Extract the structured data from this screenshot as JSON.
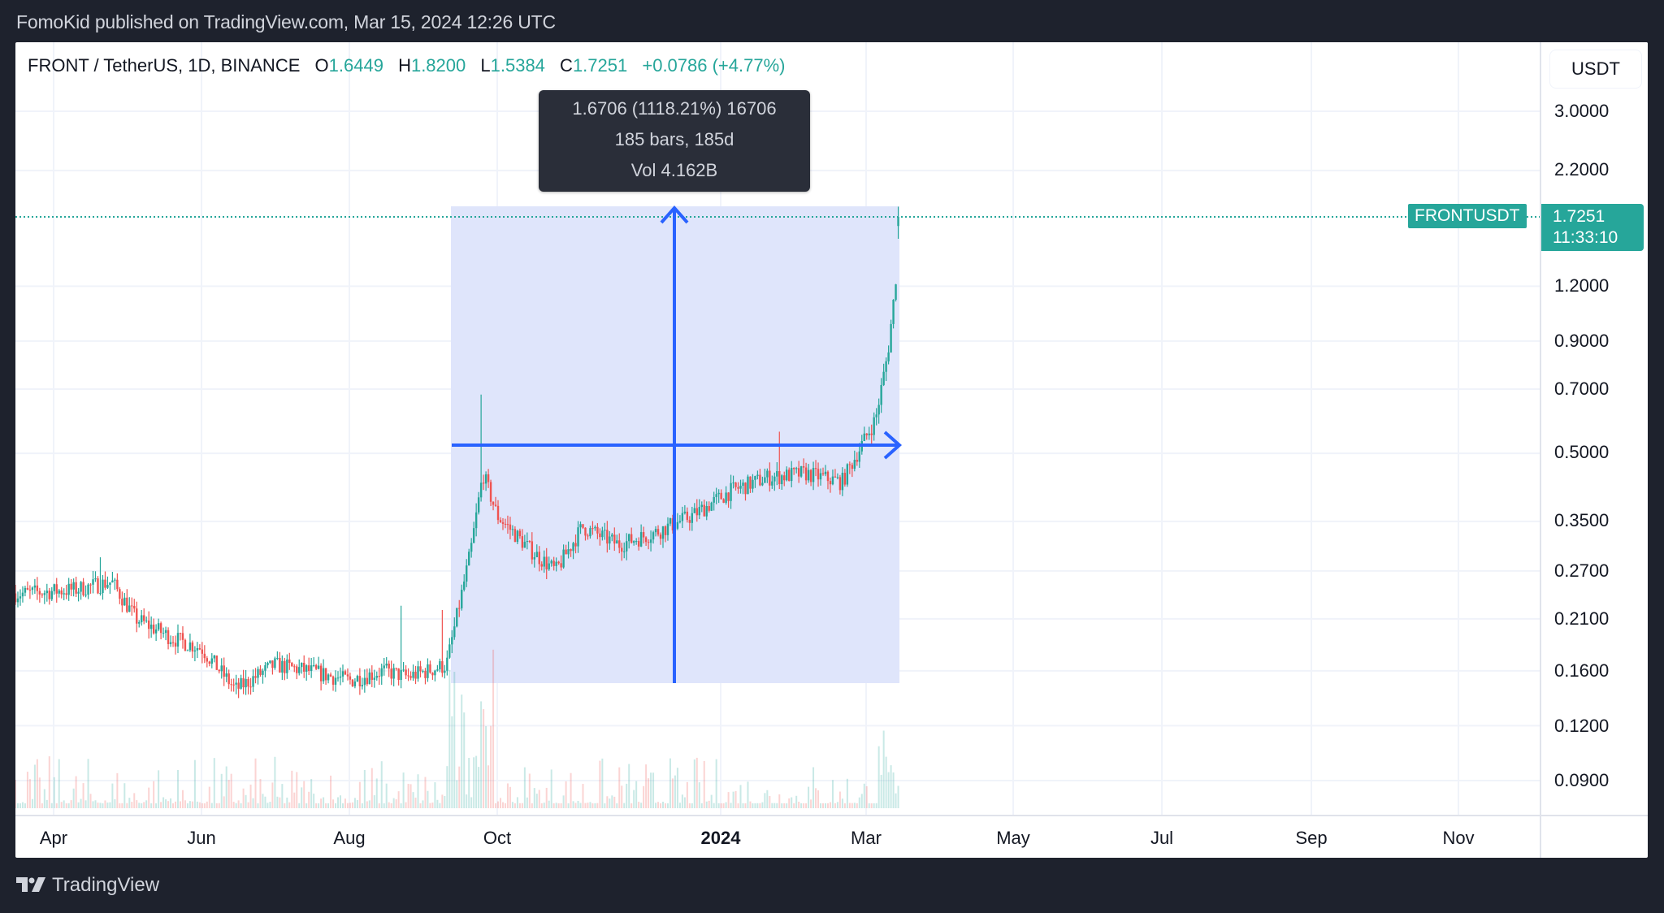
{
  "publisher": {
    "text": "FomoKid published on TradingView.com, Mar 15, 2024 12:26 UTC"
  },
  "legend": {
    "symbol": "FRONT / TetherUS, 1D, BINANCE",
    "open_label": "O",
    "open": "1.6449",
    "high_label": "H",
    "high": "1.8200",
    "low_label": "L",
    "low": "1.5384",
    "close_label": "C",
    "close": "1.7251",
    "change": "+0.0786 (+4.77%)"
  },
  "price_axis": {
    "currency": "USDT",
    "ticks": [
      "3.0000",
      "2.2000",
      "1.2000",
      "0.9000",
      "0.7000",
      "0.5000",
      "0.3500",
      "0.2700",
      "0.2100",
      "0.1600",
      "0.1200",
      "0.0900"
    ],
    "last_price": "1.7251",
    "countdown": "11:33:10",
    "symbol_tag": "FRONTUSDT"
  },
  "time_axis": {
    "labels": [
      "Apr",
      "Jun",
      "Aug",
      "Oct",
      "2024",
      "Mar",
      "May",
      "Jul",
      "Sep",
      "Nov"
    ]
  },
  "measure_tooltip": {
    "line1": "1.6706 (1118.21%) 16706",
    "line2": "185 bars, 185d",
    "line3": "Vol 4.162B"
  },
  "brand": {
    "name": "TradingView"
  },
  "colors": {
    "up": "#26a69a",
    "down": "#ef5350",
    "measure_fill": "#dde4fb",
    "measure_line": "#2962ff",
    "background": "#1e222d"
  },
  "chart_data": {
    "type": "candlestick",
    "title": "FRONT / TetherUS, 1D, BINANCE",
    "scale": "log",
    "ylim": [
      0.08,
      3.3
    ],
    "yticks": [
      3.0,
      2.2,
      1.2,
      0.9,
      0.7,
      0.5,
      0.35,
      0.27,
      0.21,
      0.16,
      0.12,
      0.09
    ],
    "x_ticks": [
      "Apr",
      "Jun",
      "Aug",
      "Oct",
      "2024",
      "Mar",
      "May",
      "Jul",
      "Sep",
      "Nov"
    ],
    "x_range": "Mar 2023 – Dec 2024 (daily)",
    "close_path": [
      {
        "date": "2023-03-20",
        "close": 0.24
      },
      {
        "date": "2023-04-10",
        "close": 0.245
      },
      {
        "date": "2023-04-25",
        "close": 0.255
      },
      {
        "date": "2023-05-05",
        "close": 0.21
      },
      {
        "date": "2023-05-20",
        "close": 0.19
      },
      {
        "date": "2023-06-01",
        "close": 0.18
      },
      {
        "date": "2023-06-15",
        "close": 0.145
      },
      {
        "date": "2023-07-01",
        "close": 0.165
      },
      {
        "date": "2023-07-15",
        "close": 0.16
      },
      {
        "date": "2023-08-01",
        "close": 0.152
      },
      {
        "date": "2023-08-15",
        "close": 0.16
      },
      {
        "date": "2023-08-25",
        "close": 0.155
      },
      {
        "date": "2023-09-10",
        "close": 0.165
      },
      {
        "date": "2023-09-20",
        "close": 0.3
      },
      {
        "date": "2023-09-25",
        "close": 0.45
      },
      {
        "date": "2023-10-01",
        "close": 0.36
      },
      {
        "date": "2023-10-15",
        "close": 0.3
      },
      {
        "date": "2023-10-25",
        "close": 0.27
      },
      {
        "date": "2023-11-05",
        "close": 0.34
      },
      {
        "date": "2023-11-20",
        "close": 0.31
      },
      {
        "date": "2023-12-05",
        "close": 0.33
      },
      {
        "date": "2023-12-20",
        "close": 0.36
      },
      {
        "date": "2024-01-05",
        "close": 0.41
      },
      {
        "date": "2024-01-20",
        "close": 0.44
      },
      {
        "date": "2024-02-05",
        "close": 0.45
      },
      {
        "date": "2024-02-20",
        "close": 0.43
      },
      {
        "date": "2024-02-28",
        "close": 0.52
      },
      {
        "date": "2024-03-05",
        "close": 0.6
      },
      {
        "date": "2024-03-10",
        "close": 0.85
      },
      {
        "date": "2024-03-13",
        "close": 1.2
      },
      {
        "date": "2024-03-15",
        "close": 1.7251
      }
    ],
    "last": {
      "open": 1.6449,
      "high": 1.82,
      "low": 1.5384,
      "close": 1.7251,
      "change": 0.0786,
      "change_pct": 4.77
    },
    "measurement": {
      "price_change": 1.6706,
      "pct": 1118.21,
      "ticks": 16706,
      "bars": 185,
      "days": 185,
      "volume": "4.162B",
      "from_price": 0.1494,
      "to_price": 1.82
    },
    "annotations": [
      "FRONTUSDT 1.7251",
      "countdown 11:33:10"
    ]
  }
}
